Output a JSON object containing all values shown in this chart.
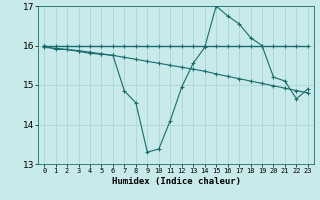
{
  "xlabel": "Humidex (Indice chaleur)",
  "bg_color": "#c8eaea",
  "grid_color": "#b0d8d8",
  "line_color": "#1a6b6b",
  "xlim": [
    -0.5,
    23.5
  ],
  "ylim": [
    13,
    17
  ],
  "yticks": [
    13,
    14,
    15,
    16,
    17
  ],
  "xticks": [
    0,
    1,
    2,
    3,
    4,
    5,
    6,
    7,
    8,
    9,
    10,
    11,
    12,
    13,
    14,
    15,
    16,
    17,
    18,
    19,
    20,
    21,
    22,
    23
  ],
  "series1_x": [
    0,
    1,
    2,
    3,
    4,
    5,
    6,
    7,
    8,
    9,
    10,
    11,
    12,
    13,
    14,
    15,
    16,
    17,
    18,
    19,
    20,
    21,
    22,
    23
  ],
  "series1_y": [
    16.0,
    16.0,
    16.0,
    16.0,
    16.0,
    16.0,
    16.0,
    16.0,
    16.0,
    16.0,
    16.0,
    16.0,
    16.0,
    16.0,
    16.0,
    16.0,
    16.0,
    16.0,
    16.0,
    16.0,
    16.0,
    16.0,
    16.0,
    16.0
  ],
  "series2_x": [
    0,
    1,
    2,
    3,
    4,
    5,
    6,
    7,
    8,
    9,
    10,
    11,
    12,
    13,
    14,
    15,
    16,
    17,
    18,
    19,
    20,
    21,
    22,
    23
  ],
  "series2_y": [
    15.95,
    15.93,
    15.9,
    15.87,
    15.83,
    15.79,
    15.75,
    15.7,
    15.65,
    15.6,
    15.55,
    15.5,
    15.45,
    15.4,
    15.35,
    15.28,
    15.22,
    15.16,
    15.1,
    15.04,
    14.98,
    14.92,
    14.86,
    14.8
  ],
  "series3_x": [
    0,
    1,
    2,
    3,
    4,
    5,
    6,
    7,
    8,
    9,
    10,
    11,
    12,
    13,
    14,
    15,
    16,
    17,
    18,
    19,
    20,
    21,
    22,
    23
  ],
  "series3_y": [
    16.0,
    15.9,
    15.9,
    15.85,
    15.8,
    15.78,
    15.75,
    14.85,
    14.55,
    13.3,
    13.38,
    14.1,
    14.95,
    15.55,
    15.95,
    17.0,
    16.75,
    16.55,
    16.2,
    16.0,
    15.2,
    15.1,
    14.65,
    14.9
  ]
}
